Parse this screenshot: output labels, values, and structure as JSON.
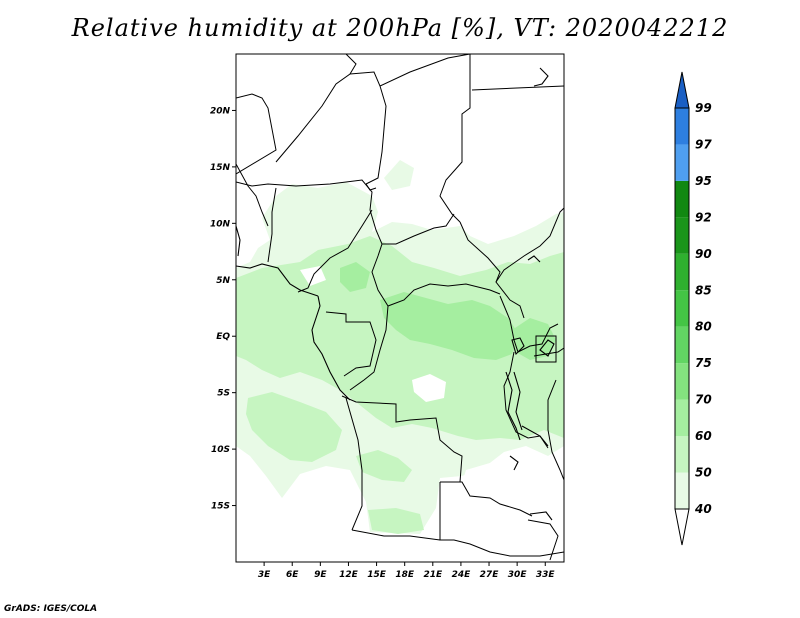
{
  "title": "Relative humidity at 200hPa [%], VT: 2020042212",
  "credit": "GrADS: IGES/COLA",
  "map": {
    "projection": "lat-lon",
    "lon_range": [
      0,
      35
    ],
    "lat_range": [
      -20,
      25
    ],
    "lat_ticks": [
      {
        "value": 20,
        "label": "20N"
      },
      {
        "value": 15,
        "label": "15N"
      },
      {
        "value": 10,
        "label": "10N"
      },
      {
        "value": 5,
        "label": "5N"
      },
      {
        "value": 0,
        "label": "EQ"
      },
      {
        "value": -5,
        "label": "5S"
      },
      {
        "value": -10,
        "label": "10S"
      },
      {
        "value": -15,
        "label": "15S"
      }
    ],
    "lon_ticks": [
      {
        "value": 3,
        "label": "3E"
      },
      {
        "value": 6,
        "label": "6E"
      },
      {
        "value": 9,
        "label": "9E"
      },
      {
        "value": 12,
        "label": "12E"
      },
      {
        "value": 15,
        "label": "15E"
      },
      {
        "value": 18,
        "label": "18E"
      },
      {
        "value": 21,
        "label": "21E"
      },
      {
        "value": 24,
        "label": "24E"
      },
      {
        "value": 27,
        "label": "27E"
      },
      {
        "value": 30,
        "label": "30E"
      },
      {
        "value": 33,
        "label": "33E"
      }
    ]
  },
  "colorbar": {
    "levels": [
      "40",
      "50",
      "60",
      "70",
      "75",
      "80",
      "85",
      "90",
      "92",
      "95",
      "97",
      "99"
    ],
    "colors": [
      "#ffffff",
      "#e8fae6",
      "#c6f5c1",
      "#a5eea0",
      "#84e27f",
      "#62d563",
      "#44c545",
      "#2fb02f",
      "#1a951a",
      "#118811",
      "#4f9ff0",
      "#2e7fe0",
      "#1a5fc4"
    ]
  }
}
